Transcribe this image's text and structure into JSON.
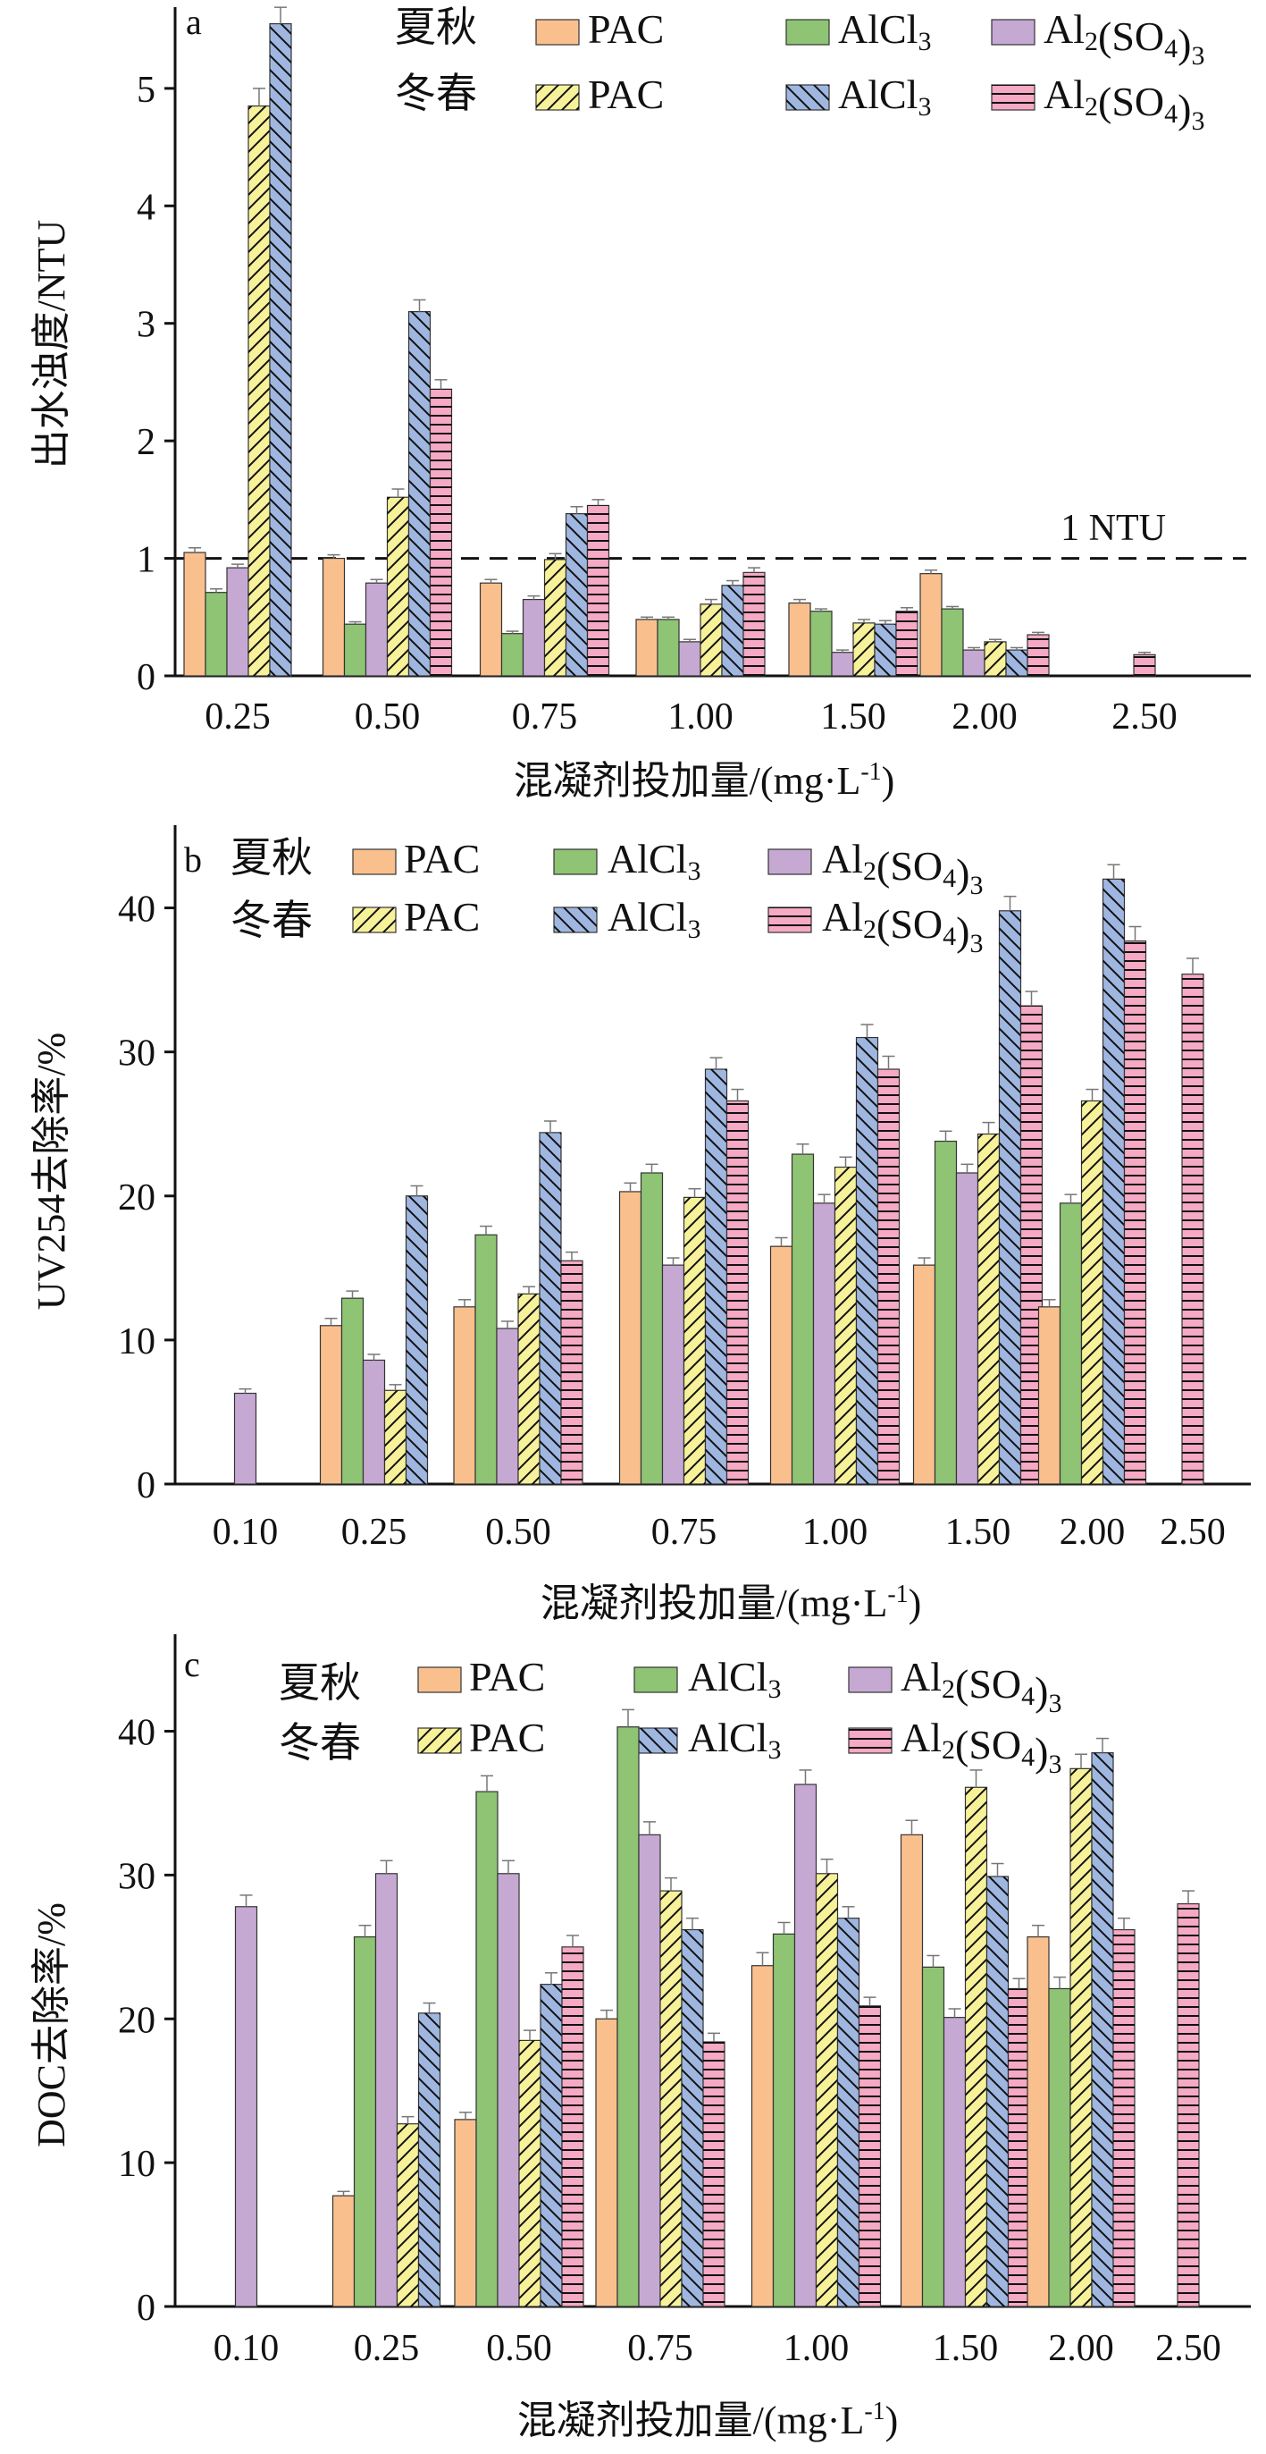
{
  "legend_groups": {
    "summer_autumn": "夏秋",
    "winter_spring": "冬春"
  },
  "colors": {
    "PAC": "#f9c08e",
    "AlCl3": "#8ec474",
    "Al2SO43": "#c6a9d2",
    "PAC_ws": "#f7f19a",
    "AlCl3_ws": "#9fb7e0",
    "Al2SO43_ws": "#f6a9c4",
    "axis": "#111111"
  },
  "chart_data": [
    {
      "type": "bar",
      "panel": "a",
      "xlabel": "混凝剂投加量/(mg·L-1)",
      "ylabel": "出水浊度/NTU",
      "categories": [
        "0.25",
        "0.50",
        "0.75",
        "1.00",
        "1.50",
        "2.00",
        "2.50"
      ],
      "ylim": [
        0,
        5.6
      ],
      "yticks": [
        0,
        1,
        2,
        3,
        4,
        5
      ],
      "reference_line": {
        "value": 1,
        "label": "1 NTU"
      },
      "series": [
        {
          "name": "PAC",
          "season": "夏秋",
          "values": [
            1.05,
            1.0,
            0.79,
            0.48,
            0.62,
            0.87,
            null
          ],
          "errors": [
            0.04,
            0.03,
            0.03,
            0.02,
            0.03,
            0.03,
            0
          ]
        },
        {
          "name": "AlCl3",
          "season": "夏秋",
          "values": [
            0.71,
            0.44,
            0.36,
            0.48,
            0.55,
            0.57,
            null
          ],
          "errors": [
            0.03,
            0.02,
            0.02,
            0.02,
            0.02,
            0.02,
            0
          ]
        },
        {
          "name": "Al2(SO4)3",
          "season": "夏秋",
          "values": [
            0.92,
            0.79,
            0.65,
            0.29,
            0.2,
            0.22,
            null
          ],
          "errors": [
            0.03,
            0.03,
            0.03,
            0.02,
            0.02,
            0.02,
            0
          ]
        },
        {
          "name": "PAC",
          "season": "冬春",
          "values": [
            4.85,
            1.52,
            0.99,
            0.61,
            0.45,
            0.29,
            null
          ],
          "errors": [
            0.15,
            0.07,
            0.05,
            0.04,
            0.03,
            0.02,
            0
          ]
        },
        {
          "name": "AlCl3",
          "season": "冬春",
          "values": [
            5.55,
            3.1,
            1.38,
            0.77,
            0.44,
            0.22,
            null
          ],
          "errors": [
            0.14,
            0.1,
            0.06,
            0.04,
            0.03,
            0.02,
            0
          ]
        },
        {
          "name": "Al2(SO4)3",
          "season": "冬春",
          "values": [
            null,
            2.44,
            1.45,
            0.88,
            0.55,
            0.35,
            0.18
          ],
          "errors": [
            0,
            0.08,
            0.05,
            0.04,
            0.03,
            0.02,
            0.02
          ]
        }
      ]
    },
    {
      "type": "bar",
      "panel": "b",
      "xlabel": "混凝剂投加量/(mg·L-1)",
      "ylabel": "UV254去除率/%",
      "categories": [
        "0.10",
        "0.25",
        "0.50",
        "0.75",
        "1.00",
        "1.50",
        "2.00",
        "2.50"
      ],
      "ylim": [
        0,
        45
      ],
      "yticks": [
        0,
        10,
        20,
        30,
        40
      ],
      "series": [
        {
          "name": "PAC",
          "season": "夏秋",
          "values": [
            null,
            11.0,
            12.3,
            20.3,
            16.5,
            15.2,
            12.3,
            null
          ],
          "errors": [
            0,
            0.5,
            0.5,
            0.6,
            0.6,
            0.5,
            0.5,
            0
          ]
        },
        {
          "name": "AlCl3",
          "season": "夏秋",
          "values": [
            null,
            12.9,
            17.3,
            21.6,
            22.9,
            23.8,
            19.5,
            null
          ],
          "errors": [
            0,
            0.5,
            0.6,
            0.6,
            0.7,
            0.7,
            0.6,
            0
          ]
        },
        {
          "name": "Al2(SO4)3",
          "season": "夏秋",
          "values": [
            6.3,
            8.6,
            10.8,
            15.2,
            19.5,
            21.6,
            null,
            null
          ],
          "errors": [
            0.3,
            0.4,
            0.5,
            0.5,
            0.6,
            0.6,
            0,
            0
          ]
        },
        {
          "name": "PAC",
          "season": "冬春",
          "values": [
            null,
            6.5,
            13.2,
            19.9,
            22.0,
            24.3,
            26.6,
            null
          ],
          "errors": [
            0,
            0.4,
            0.5,
            0.6,
            0.7,
            0.8,
            0.8,
            0
          ]
        },
        {
          "name": "AlCl3",
          "season": "冬春",
          "values": [
            null,
            20.0,
            24.4,
            28.8,
            31.0,
            39.8,
            42.0,
            null
          ],
          "errors": [
            0,
            0.7,
            0.8,
            0.8,
            0.9,
            1.0,
            1.0,
            0
          ]
        },
        {
          "name": "Al2(SO4)3",
          "season": "冬春",
          "values": [
            null,
            null,
            15.5,
            26.6,
            28.8,
            33.2,
            37.7,
            35.4
          ],
          "errors": [
            0,
            0,
            0.6,
            0.8,
            0.9,
            1.0,
            1.0,
            1.1
          ]
        }
      ]
    },
    {
      "type": "bar",
      "panel": "c",
      "xlabel": "混凝剂投加量/(mg·L-1)",
      "ylabel": "DOC去除率/%",
      "categories": [
        "0.10",
        "0.25",
        "0.50",
        "0.75",
        "1.00",
        "1.50",
        "2.00",
        "2.50"
      ],
      "ylim": [
        0,
        46
      ],
      "yticks": [
        0,
        10,
        20,
        30,
        40
      ],
      "series": [
        {
          "name": "PAC",
          "season": "夏秋",
          "values": [
            null,
            7.7,
            13.0,
            20.0,
            23.7,
            32.8,
            25.7,
            null
          ],
          "errors": [
            0,
            0.3,
            0.5,
            0.6,
            0.9,
            1.0,
            0.8,
            0
          ]
        },
        {
          "name": "AlCl3",
          "season": "夏秋",
          "values": [
            null,
            25.7,
            35.8,
            40.3,
            25.9,
            23.6,
            22.1,
            null
          ],
          "errors": [
            0,
            0.8,
            1.1,
            1.2,
            0.8,
            0.8,
            0.8,
            0
          ]
        },
        {
          "name": "Al2(SO4)3",
          "season": "夏秋",
          "values": [
            27.8,
            30.1,
            30.1,
            32.8,
            36.3,
            20.1,
            null,
            null
          ],
          "errors": [
            0.8,
            0.9,
            0.9,
            0.9,
            1.0,
            0.6,
            0,
            0
          ]
        },
        {
          "name": "PAC",
          "season": "冬春",
          "values": [
            null,
            12.7,
            18.5,
            28.9,
            30.1,
            36.1,
            37.4,
            null
          ],
          "errors": [
            0,
            0.5,
            0.7,
            0.9,
            1.0,
            1.2,
            1.0,
            0
          ]
        },
        {
          "name": "AlCl3",
          "season": "冬春",
          "values": [
            null,
            20.4,
            22.4,
            26.2,
            27.0,
            29.9,
            38.5,
            null
          ],
          "errors": [
            0,
            0.7,
            0.8,
            0.8,
            0.8,
            0.9,
            1.0,
            0
          ]
        },
        {
          "name": "Al2(SO4)3",
          "season": "冬春",
          "values": [
            null,
            null,
            25.0,
            18.4,
            20.9,
            22.1,
            26.2,
            28.0
          ],
          "errors": [
            0,
            0,
            0.8,
            0.6,
            0.6,
            0.7,
            0.8,
            0.9
          ]
        }
      ]
    }
  ]
}
